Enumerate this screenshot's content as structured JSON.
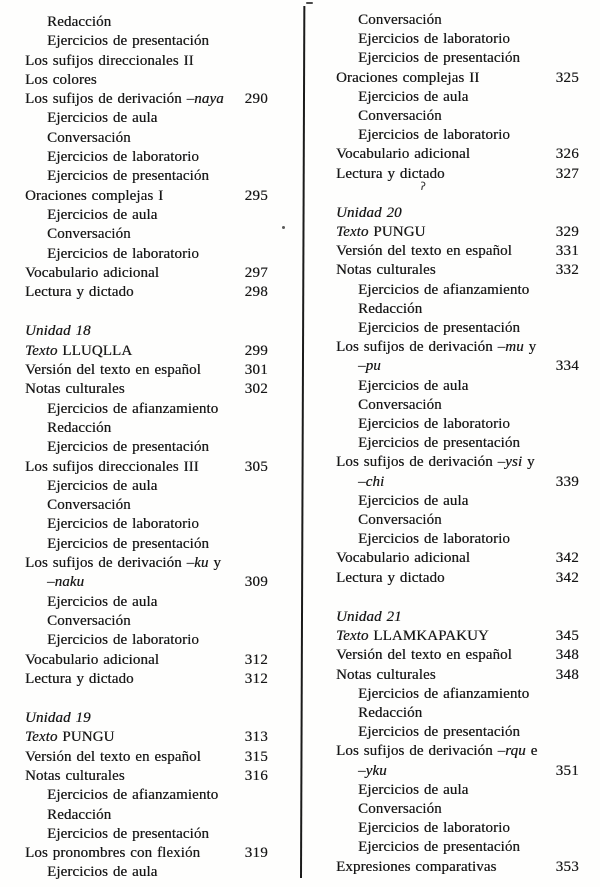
{
  "page": {
    "kind": "book-table-of-contents-scan",
    "paper_color": "#fefefd",
    "ink_color": "#161616"
  },
  "artifacts": {
    "stray_mark": "ʔ"
  },
  "toc": {
    "columns": [
      {
        "name": "left",
        "entries": [
          {
            "indent": 1,
            "segments": [
              {
                "text": "Redacción"
              }
            ],
            "page": ""
          },
          {
            "indent": 1,
            "segments": [
              {
                "text": "Ejercicios de presentación"
              }
            ],
            "page": ""
          },
          {
            "indent": 0,
            "segments": [
              {
                "text": "Los sufijos direccionales II"
              }
            ],
            "page": ""
          },
          {
            "indent": 0,
            "segments": [
              {
                "text": "Los colores"
              }
            ],
            "page": ""
          },
          {
            "indent": 0,
            "segments": [
              {
                "text": "Los sufijos de derivación "
              },
              {
                "text": "–naya",
                "italic": true
              }
            ],
            "page": "290"
          },
          {
            "indent": 1,
            "segments": [
              {
                "text": "Ejercicios de aula"
              }
            ],
            "page": ""
          },
          {
            "indent": 1,
            "segments": [
              {
                "text": "Conversación"
              }
            ],
            "page": ""
          },
          {
            "indent": 1,
            "segments": [
              {
                "text": "Ejercicios de laboratorio"
              }
            ],
            "page": ""
          },
          {
            "indent": 1,
            "segments": [
              {
                "text": "Ejercicios de presentación"
              }
            ],
            "page": ""
          },
          {
            "indent": 0,
            "segments": [
              {
                "text": "Oraciones complejas I"
              }
            ],
            "page": "295"
          },
          {
            "indent": 1,
            "segments": [
              {
                "text": "Ejercicios de aula"
              }
            ],
            "page": ""
          },
          {
            "indent": 1,
            "segments": [
              {
                "text": "Conversación"
              }
            ],
            "page": ""
          },
          {
            "indent": 1,
            "segments": [
              {
                "text": "Ejercicios de laboratorio"
              }
            ],
            "page": ""
          },
          {
            "indent": 0,
            "segments": [
              {
                "text": "Vocabulario adicional"
              }
            ],
            "page": "297"
          },
          {
            "indent": 0,
            "segments": [
              {
                "text": "Lectura y dictado"
              }
            ],
            "page": "298"
          },
          {
            "indent": 0,
            "gap_before": true,
            "segments": [
              {
                "text": "Unidad 18",
                "italic": true
              }
            ],
            "page": ""
          },
          {
            "indent": 0,
            "segments": [
              {
                "text": "Texto",
                "italic": true
              },
              {
                "text": " LLUQLLA"
              }
            ],
            "page": "299"
          },
          {
            "indent": 0,
            "segments": [
              {
                "text": "Versión del texto en español"
              }
            ],
            "page": "301"
          },
          {
            "indent": 0,
            "segments": [
              {
                "text": "Notas culturales"
              }
            ],
            "page": "302"
          },
          {
            "indent": 1,
            "segments": [
              {
                "text": "Ejercicios de afianzamiento"
              }
            ],
            "page": ""
          },
          {
            "indent": 1,
            "segments": [
              {
                "text": "Redacción"
              }
            ],
            "page": ""
          },
          {
            "indent": 1,
            "segments": [
              {
                "text": "Ejercicios de presentación"
              }
            ],
            "page": ""
          },
          {
            "indent": 0,
            "segments": [
              {
                "text": "Los sufijos direccionales III"
              }
            ],
            "page": "305"
          },
          {
            "indent": 1,
            "segments": [
              {
                "text": "Ejercicios de aula"
              }
            ],
            "page": ""
          },
          {
            "indent": 1,
            "segments": [
              {
                "text": "Conversación"
              }
            ],
            "page": ""
          },
          {
            "indent": 1,
            "segments": [
              {
                "text": "Ejercicios de laboratorio"
              }
            ],
            "page": ""
          },
          {
            "indent": 1,
            "segments": [
              {
                "text": "Ejercicios de presentación"
              }
            ],
            "page": ""
          },
          {
            "indent": 0,
            "segments": [
              {
                "text": "Los sufijos de derivación "
              },
              {
                "text": "–ku",
                "italic": true
              },
              {
                "text": " y"
              }
            ],
            "page": ""
          },
          {
            "indent": 1,
            "segments": [
              {
                "text": "–naku",
                "italic": true
              }
            ],
            "page": "309"
          },
          {
            "indent": 1,
            "segments": [
              {
                "text": "Ejercicios de aula"
              }
            ],
            "page": ""
          },
          {
            "indent": 1,
            "segments": [
              {
                "text": "Conversación"
              }
            ],
            "page": ""
          },
          {
            "indent": 1,
            "segments": [
              {
                "text": "Ejercicios de laboratorio"
              }
            ],
            "page": ""
          },
          {
            "indent": 0,
            "segments": [
              {
                "text": "Vocabulario adicional"
              }
            ],
            "page": "312"
          },
          {
            "indent": 0,
            "segments": [
              {
                "text": "Lectura y dictado"
              }
            ],
            "page": "312"
          },
          {
            "indent": 0,
            "gap_before": true,
            "segments": [
              {
                "text": "Unidad 19",
                "italic": true
              }
            ],
            "page": ""
          },
          {
            "indent": 0,
            "segments": [
              {
                "text": "Texto",
                "italic": true
              },
              {
                "text": " PUNGU"
              }
            ],
            "page": "313"
          },
          {
            "indent": 0,
            "segments": [
              {
                "text": "Versión del texto en español"
              }
            ],
            "page": "315"
          },
          {
            "indent": 0,
            "segments": [
              {
                "text": "Notas culturales"
              }
            ],
            "page": "316"
          },
          {
            "indent": 1,
            "segments": [
              {
                "text": "Ejercicios de afianzamiento"
              }
            ],
            "page": ""
          },
          {
            "indent": 1,
            "segments": [
              {
                "text": "Redacción"
              }
            ],
            "page": ""
          },
          {
            "indent": 1,
            "segments": [
              {
                "text": "Ejercicios de presentación"
              }
            ],
            "page": ""
          },
          {
            "indent": 0,
            "segments": [
              {
                "text": "Los pronombres con flexión"
              }
            ],
            "page": "319"
          },
          {
            "indent": 1,
            "segments": [
              {
                "text": "Ejercicios de aula"
              }
            ],
            "page": ""
          }
        ]
      },
      {
        "name": "right",
        "entries": [
          {
            "indent": 1,
            "segments": [
              {
                "text": "Conversación"
              }
            ],
            "page": ""
          },
          {
            "indent": 1,
            "segments": [
              {
                "text": "Ejercicios de laboratorio"
              }
            ],
            "page": ""
          },
          {
            "indent": 1,
            "segments": [
              {
                "text": "Ejercicios de presentación"
              }
            ],
            "page": ""
          },
          {
            "indent": 0,
            "segments": [
              {
                "text": "Oraciones complejas II"
              }
            ],
            "page": "325"
          },
          {
            "indent": 1,
            "segments": [
              {
                "text": "Ejercicios de aula"
              }
            ],
            "page": ""
          },
          {
            "indent": 1,
            "segments": [
              {
                "text": "Conversación"
              }
            ],
            "page": ""
          },
          {
            "indent": 1,
            "segments": [
              {
                "text": "Ejercicios de laboratorio"
              }
            ],
            "page": ""
          },
          {
            "indent": 0,
            "segments": [
              {
                "text": "Vocabulario adicional"
              }
            ],
            "page": "326"
          },
          {
            "indent": 0,
            "segments": [
              {
                "text": "Lectura y dictado"
              }
            ],
            "page": "327"
          },
          {
            "indent": 0,
            "gap_before": true,
            "segments": [
              {
                "text": "Unidad 20",
                "italic": true
              }
            ],
            "page": ""
          },
          {
            "indent": 0,
            "segments": [
              {
                "text": "Texto",
                "italic": true
              },
              {
                "text": " PUNGU"
              }
            ],
            "page": "329"
          },
          {
            "indent": 0,
            "segments": [
              {
                "text": "Versión del texto en español"
              }
            ],
            "page": "331"
          },
          {
            "indent": 0,
            "segments": [
              {
                "text": "Notas culturales"
              }
            ],
            "page": "332"
          },
          {
            "indent": 1,
            "segments": [
              {
                "text": "Ejercicios de afianzamiento"
              }
            ],
            "page": ""
          },
          {
            "indent": 1,
            "segments": [
              {
                "text": "Redacción"
              }
            ],
            "page": ""
          },
          {
            "indent": 1,
            "segments": [
              {
                "text": "Ejercicios de presentación"
              }
            ],
            "page": ""
          },
          {
            "indent": 0,
            "segments": [
              {
                "text": "Los sufijos de derivación "
              },
              {
                "text": "–mu",
                "italic": true
              },
              {
                "text": " y"
              }
            ],
            "page": ""
          },
          {
            "indent": 1,
            "segments": [
              {
                "text": "–pu",
                "italic": true
              }
            ],
            "page": "334"
          },
          {
            "indent": 1,
            "segments": [
              {
                "text": "Ejercicios de aula"
              }
            ],
            "page": ""
          },
          {
            "indent": 1,
            "segments": [
              {
                "text": "Conversación"
              }
            ],
            "page": ""
          },
          {
            "indent": 1,
            "segments": [
              {
                "text": "Ejercicios de laboratorio"
              }
            ],
            "page": ""
          },
          {
            "indent": 1,
            "segments": [
              {
                "text": "Ejercicios de presentación"
              }
            ],
            "page": ""
          },
          {
            "indent": 0,
            "segments": [
              {
                "text": "Los sufijos de derivación "
              },
              {
                "text": "–ysi",
                "italic": true
              },
              {
                "text": " y"
              }
            ],
            "page": ""
          },
          {
            "indent": 1,
            "segments": [
              {
                "text": "–chi",
                "italic": true
              }
            ],
            "page": "339"
          },
          {
            "indent": 1,
            "segments": [
              {
                "text": "Ejercicios de aula"
              }
            ],
            "page": ""
          },
          {
            "indent": 1,
            "segments": [
              {
                "text": "Conversación"
              }
            ],
            "page": ""
          },
          {
            "indent": 1,
            "segments": [
              {
                "text": "Ejercicios de laboratorio"
              }
            ],
            "page": ""
          },
          {
            "indent": 0,
            "segments": [
              {
                "text": "Vocabulario adicional"
              }
            ],
            "page": "342"
          },
          {
            "indent": 0,
            "segments": [
              {
                "text": "Lectura y dictado"
              }
            ],
            "page": "342"
          },
          {
            "indent": 0,
            "gap_before": true,
            "segments": [
              {
                "text": "Unidad 21",
                "italic": true
              }
            ],
            "page": ""
          },
          {
            "indent": 0,
            "segments": [
              {
                "text": "Texto",
                "italic": true
              },
              {
                "text": " LLAMKAPAKUY"
              }
            ],
            "page": "345"
          },
          {
            "indent": 0,
            "segments": [
              {
                "text": "Versión del texto en español"
              }
            ],
            "page": "348"
          },
          {
            "indent": 0,
            "segments": [
              {
                "text": "Notas culturales"
              }
            ],
            "page": "348"
          },
          {
            "indent": 1,
            "segments": [
              {
                "text": "Ejercicios de afianzamiento"
              }
            ],
            "page": ""
          },
          {
            "indent": 1,
            "segments": [
              {
                "text": "Redacción"
              }
            ],
            "page": ""
          },
          {
            "indent": 1,
            "segments": [
              {
                "text": "Ejercicios de presentación"
              }
            ],
            "page": ""
          },
          {
            "indent": 0,
            "segments": [
              {
                "text": "Los sufijos de derivación "
              },
              {
                "text": "–rqu",
                "italic": true
              },
              {
                "text": " e"
              }
            ],
            "page": ""
          },
          {
            "indent": 1,
            "segments": [
              {
                "text": "–yku",
                "italic": true
              }
            ],
            "page": "351"
          },
          {
            "indent": 1,
            "segments": [
              {
                "text": "Ejercicios de aula"
              }
            ],
            "page": ""
          },
          {
            "indent": 1,
            "segments": [
              {
                "text": "Conversación"
              }
            ],
            "page": ""
          },
          {
            "indent": 1,
            "segments": [
              {
                "text": "Ejercicios de laboratorio"
              }
            ],
            "page": ""
          },
          {
            "indent": 1,
            "segments": [
              {
                "text": "Ejercicios de presentación"
              }
            ],
            "page": ""
          },
          {
            "indent": 0,
            "segments": [
              {
                "text": "Expresiones comparativas"
              }
            ],
            "page": "353"
          }
        ]
      }
    ]
  }
}
